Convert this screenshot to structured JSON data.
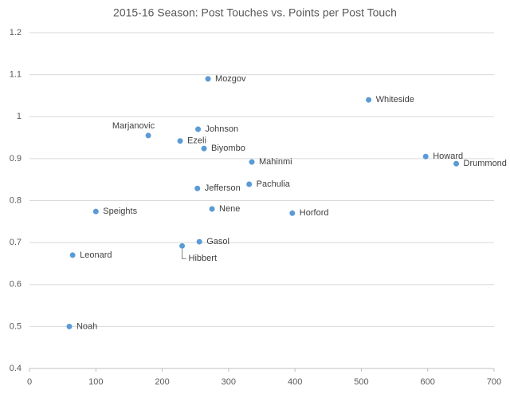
{
  "chart_data": {
    "type": "scatter",
    "title": "2015-16 Season: Post Touches vs. Points per Post Touch",
    "labels": [
      "Mozgov",
      "Whiteside",
      "Johnson",
      "Marjanovic",
      "Ezeli",
      "Biyombo",
      "Mahinmi",
      "Howard",
      "Drummond",
      "Jefferson",
      "Pachulia",
      "Nene",
      "Horford",
      "Speights",
      "Gasol",
      "Hibbert",
      "Leonard",
      "Noah"
    ],
    "x": [
      269,
      511,
      254,
      179,
      227,
      263,
      335,
      597,
      643,
      253,
      331,
      275,
      396,
      100,
      256,
      230,
      65,
      60
    ],
    "y": [
      1.09,
      1.04,
      0.97,
      0.955,
      0.942,
      0.924,
      0.892,
      0.905,
      0.888,
      0.829,
      0.839,
      0.78,
      0.77,
      0.774,
      0.702,
      0.692,
      0.67,
      0.5
    ],
    "color": "#5b9bd5",
    "xlim": [
      0,
      700
    ],
    "xticks": [
      0,
      100,
      200,
      300,
      400,
      500,
      600,
      700
    ],
    "ylim": [
      0.4,
      1.2
    ],
    "yticks": [
      0.4,
      0.5,
      0.6,
      0.7,
      0.8,
      0.9,
      1,
      1.1,
      1.2
    ],
    "grid": true
  }
}
